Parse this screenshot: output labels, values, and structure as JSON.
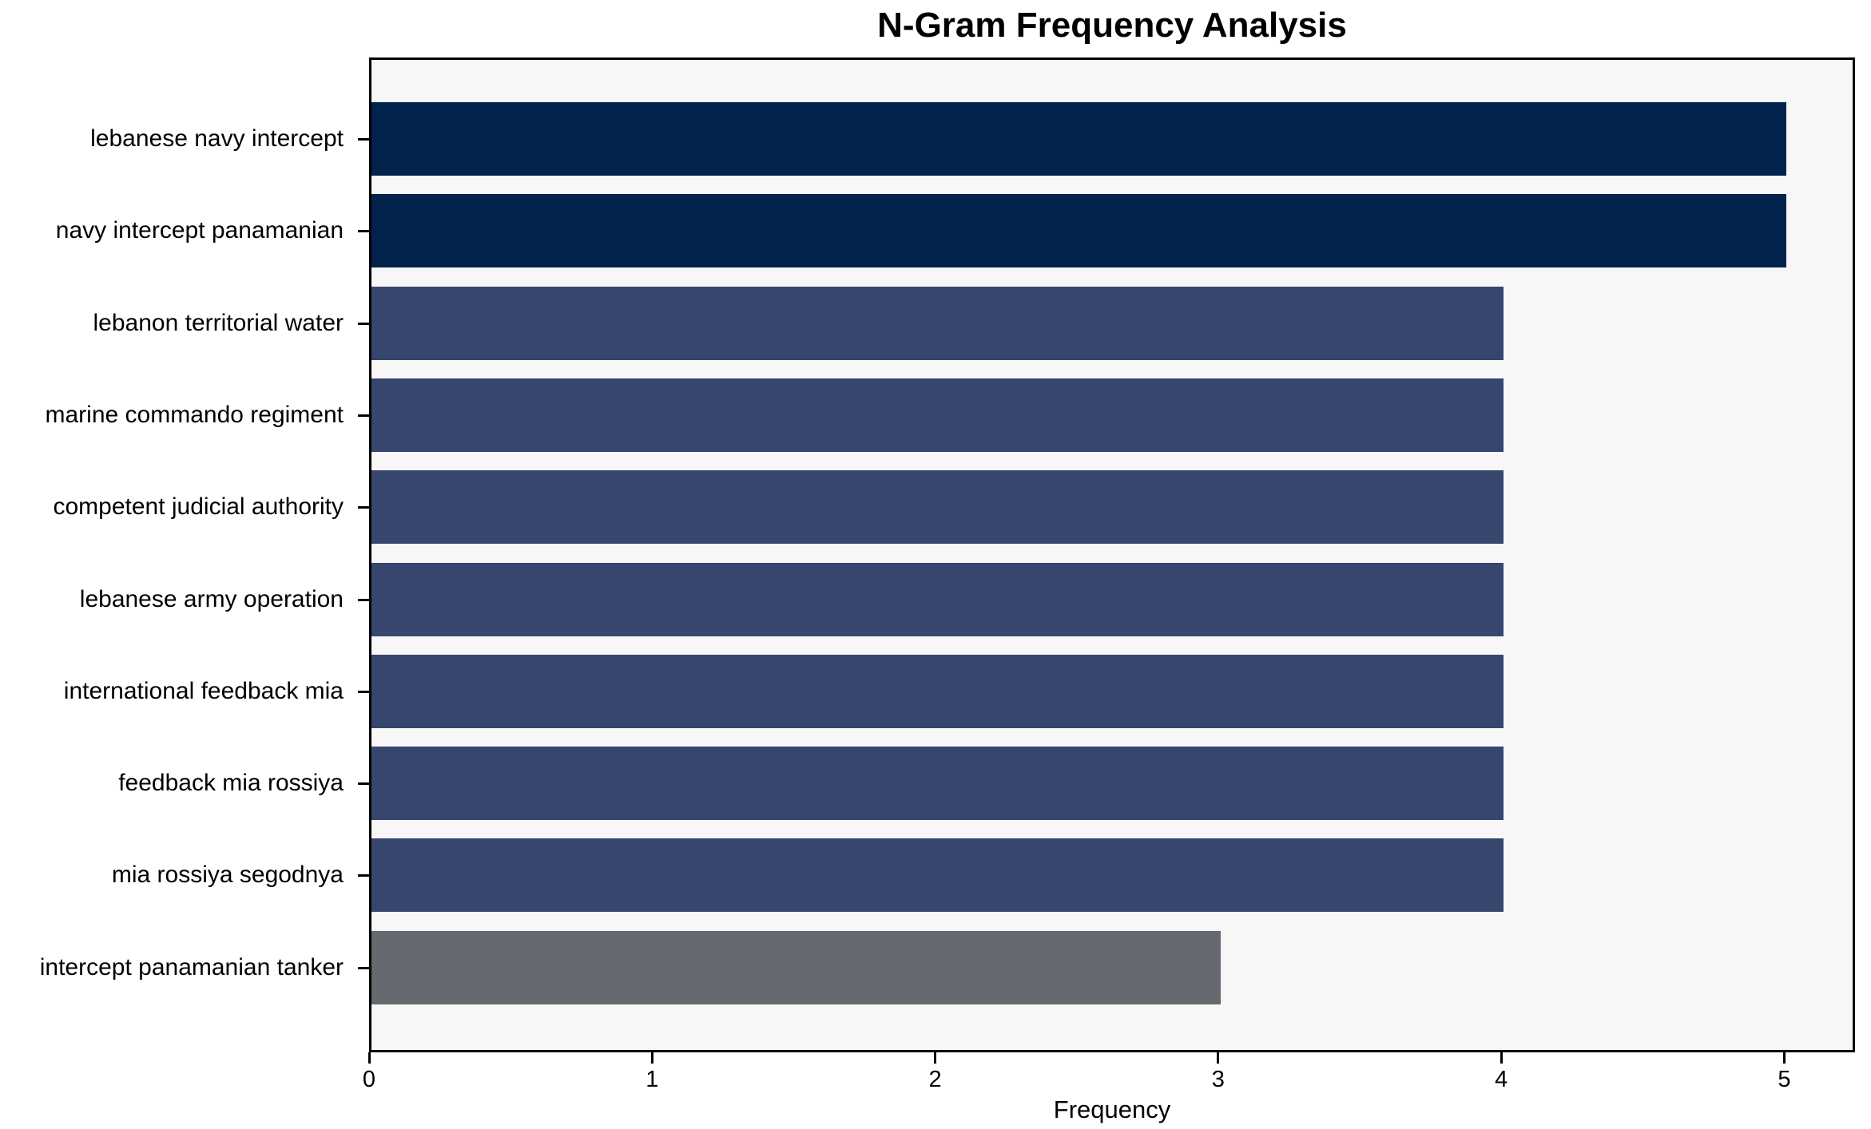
{
  "chart_data": {
    "type": "bar",
    "orientation": "horizontal",
    "title": "N-Gram Frequency Analysis",
    "xlabel": "Frequency",
    "ylabel": "",
    "categories": [
      "lebanese navy intercept",
      "navy intercept panamanian",
      "lebanon territorial water",
      "marine commando regiment",
      "competent judicial authority",
      "lebanese army operation",
      "international feedback mia",
      "feedback mia rossiya",
      "mia rossiya segodnya",
      "intercept panamanian tanker"
    ],
    "values": [
      5,
      5,
      4,
      4,
      4,
      4,
      4,
      4,
      4,
      3
    ],
    "bar_colors": [
      "#02234C",
      "#02234C",
      "#36466E",
      "#36466E",
      "#36466E",
      "#36466E",
      "#36466E",
      "#36466E",
      "#36466E",
      "#66696F"
    ],
    "x_ticks": [
      0,
      1,
      2,
      3,
      4,
      5
    ],
    "xlim": [
      0,
      5.25
    ],
    "grid": false,
    "legend": null,
    "colors": {
      "figure_background": "#FFFFFF",
      "plot_background": "#F7F7F7",
      "axis": "#000000",
      "high_value_bar": "#02234C",
      "mid_value_bar": "#36466E",
      "low_value_bar": "#66696F"
    }
  }
}
